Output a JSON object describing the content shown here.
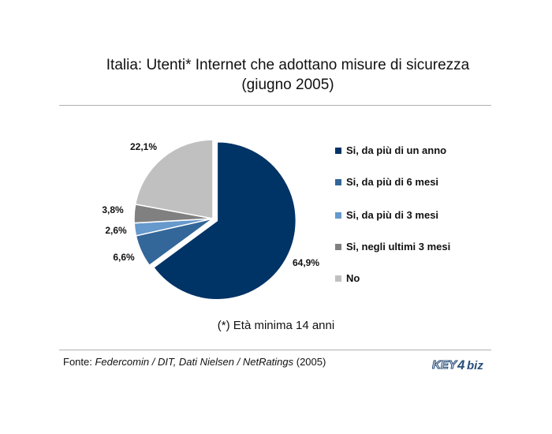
{
  "title": {
    "line1": "Italia: Utenti* Internet che adottano misure di sicurezza",
    "line2": "(giugno 2005)"
  },
  "note": "(*) Età minima 14 anni",
  "source": {
    "prefix": "Fonte: ",
    "italic": "Federcomin / DIT, Dati Nielsen / NetRatings",
    "suffix": " (2005)"
  },
  "logo": {
    "part1": "KEY",
    "part2": "4",
    "part3": "biz"
  },
  "chart_data": {
    "type": "pie",
    "title": "Italia: Utenti* Internet che adottano misure di sicurezza (giugno 2005)",
    "slices": [
      {
        "label": "Si, da più di un anno",
        "value": 64.9,
        "display": "64,9%",
        "color": "#003366"
      },
      {
        "label": "Si, da più di 6 mesi",
        "value": 6.6,
        "display": "6,6%",
        "color": "#336699"
      },
      {
        "label": "Si, da più di 3 mesi",
        "value": 2.6,
        "display": "2,6%",
        "color": "#6699cc"
      },
      {
        "label": "Si, negli ultimi 3 mesi",
        "value": 3.8,
        "display": "3,8%",
        "color": "#808080"
      },
      {
        "label": "No",
        "value": 22.1,
        "display": "22,1%",
        "color": "#c0c0c0"
      }
    ],
    "legend_position": "right",
    "exploded_slice": "Si, da più di un anno"
  }
}
